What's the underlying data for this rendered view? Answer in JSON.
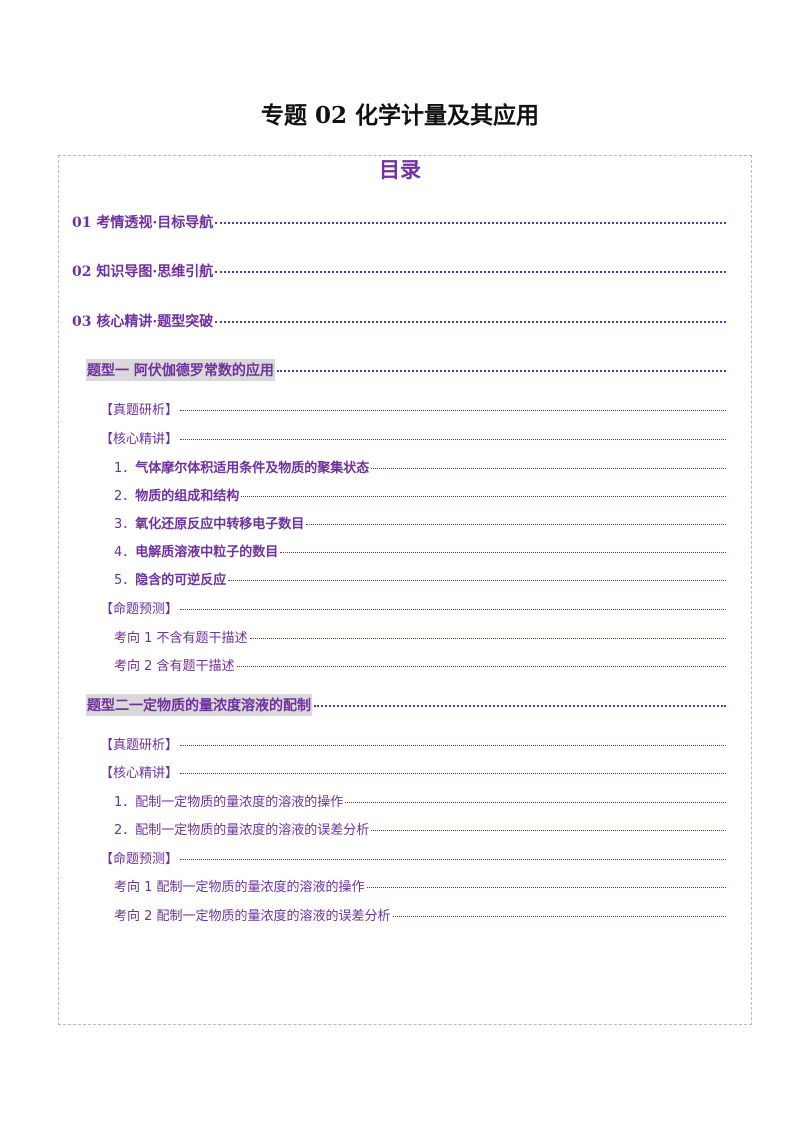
{
  "document": {
    "title": "专题 02  化学计量及其应用",
    "toc_heading": "目录"
  },
  "toc": {
    "sec1": "01 考情透视·目标导航",
    "sec2": "02 知识导图·思维引航",
    "sec3": "03 核心精讲·题型突破",
    "type1": {
      "title": "题型一    阿伏伽德罗常数的应用",
      "real_q": "【真题研析】",
      "core": "【核心精讲】",
      "items": [
        {
          "num": "1．",
          "label": "气体摩尔体积适用条件及物质的聚集状态"
        },
        {
          "num": "2．",
          "label": "物质的组成和结构"
        },
        {
          "num": "3．",
          "label": "氧化还原反应中转移电子数目"
        },
        {
          "num": "4．",
          "label": "电解质溶液中粒子的数目"
        },
        {
          "num": "5．",
          "label": "隐含的可逆反应"
        }
      ],
      "predict": "【命题预测】",
      "directions": [
        "考向 1  不含有题干描述",
        "考向 2  含有题干描述"
      ]
    },
    "type2": {
      "title": "题型二一定物质的量浓度溶液的配制",
      "real_q": "【真题研析】",
      "core": "【核心精讲】",
      "items": [
        {
          "num": "1．",
          "label": "配制一定物质的量浓度的溶液的操作"
        },
        {
          "num": "2．",
          "label": "配制一定物质的量浓度的溶液的误差分析"
        }
      ],
      "predict": "【命题预测】",
      "directions": [
        "考向 1 配制一定物质的量浓度的溶液的操作",
        "考向 2 配制一定物质的量浓度的溶液的误差分析"
      ]
    }
  },
  "colors": {
    "accent": "#7030a0",
    "highlight": "#d9d9d9",
    "border": "#b5b5e0"
  }
}
